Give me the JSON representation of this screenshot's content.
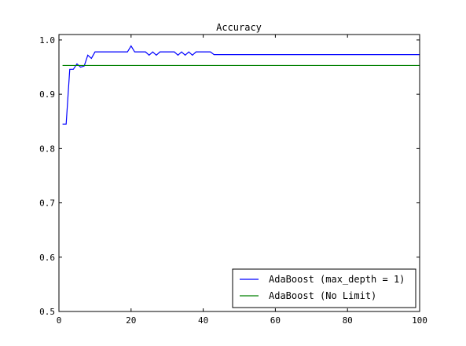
{
  "chart_data": {
    "type": "line",
    "title": "Accuracy",
    "xlabel": "",
    "ylabel": "",
    "xlim": [
      0,
      100
    ],
    "ylim": [
      0.5,
      1.01
    ],
    "xticks": [
      0,
      20,
      40,
      60,
      80,
      100
    ],
    "yticks": [
      0.5,
      0.6,
      0.7,
      0.8,
      0.9,
      1.0
    ],
    "xtick_labels": [
      "0",
      "20",
      "40",
      "60",
      "80",
      "100"
    ],
    "ytick_labels": [
      "0.5",
      "0.6",
      "0.7",
      "0.8",
      "0.9",
      "1.0"
    ],
    "grid": false,
    "legend_position": "bottom-right",
    "series": [
      {
        "name": "AdaBoost (max_depth = 1)",
        "color": "#0000ff",
        "x": [
          1,
          2,
          3,
          4,
          5,
          6,
          7,
          8,
          9,
          10,
          11,
          12,
          13,
          14,
          15,
          16,
          17,
          18,
          19,
          20,
          21,
          22,
          23,
          24,
          25,
          26,
          27,
          28,
          29,
          30,
          31,
          32,
          33,
          34,
          35,
          36,
          37,
          38,
          39,
          40,
          41,
          42,
          43,
          44,
          45,
          46,
          47,
          48,
          49,
          50,
          51,
          52,
          53,
          54,
          55,
          56,
          57,
          58,
          59,
          60,
          61,
          62,
          63,
          64,
          65,
          66,
          67,
          68,
          69,
          70,
          71,
          72,
          73,
          74,
          75,
          76,
          77,
          78,
          79,
          80,
          81,
          82,
          83,
          84,
          85,
          86,
          87,
          88,
          89,
          90,
          91,
          92,
          93,
          94,
          95,
          96,
          97,
          98,
          99,
          100
        ],
        "y": [
          0.845,
          0.845,
          0.946,
          0.946,
          0.956,
          0.95,
          0.952,
          0.972,
          0.966,
          0.978,
          0.978,
          0.978,
          0.978,
          0.978,
          0.978,
          0.978,
          0.978,
          0.978,
          0.978,
          0.989,
          0.978,
          0.978,
          0.978,
          0.978,
          0.972,
          0.978,
          0.972,
          0.978,
          0.978,
          0.978,
          0.978,
          0.978,
          0.972,
          0.978,
          0.972,
          0.978,
          0.972,
          0.978,
          0.978,
          0.978,
          0.978,
          0.978,
          0.973,
          0.973,
          0.973,
          0.973,
          0.973,
          0.973,
          0.973,
          0.973,
          0.973,
          0.973,
          0.973,
          0.973,
          0.973,
          0.973,
          0.973,
          0.973,
          0.973,
          0.973,
          0.973,
          0.973,
          0.973,
          0.973,
          0.973,
          0.973,
          0.973,
          0.973,
          0.973,
          0.973,
          0.973,
          0.973,
          0.973,
          0.973,
          0.973,
          0.973,
          0.973,
          0.973,
          0.973,
          0.973,
          0.973,
          0.973,
          0.973,
          0.973,
          0.973,
          0.973,
          0.973,
          0.973,
          0.973,
          0.973,
          0.973,
          0.973,
          0.973,
          0.973,
          0.973,
          0.973,
          0.973,
          0.973,
          0.973,
          0.973
        ]
      },
      {
        "name": "AdaBoost (No Limit)",
        "color": "#008000",
        "x": [
          1,
          100
        ],
        "y": [
          0.953,
          0.953
        ]
      }
    ]
  }
}
